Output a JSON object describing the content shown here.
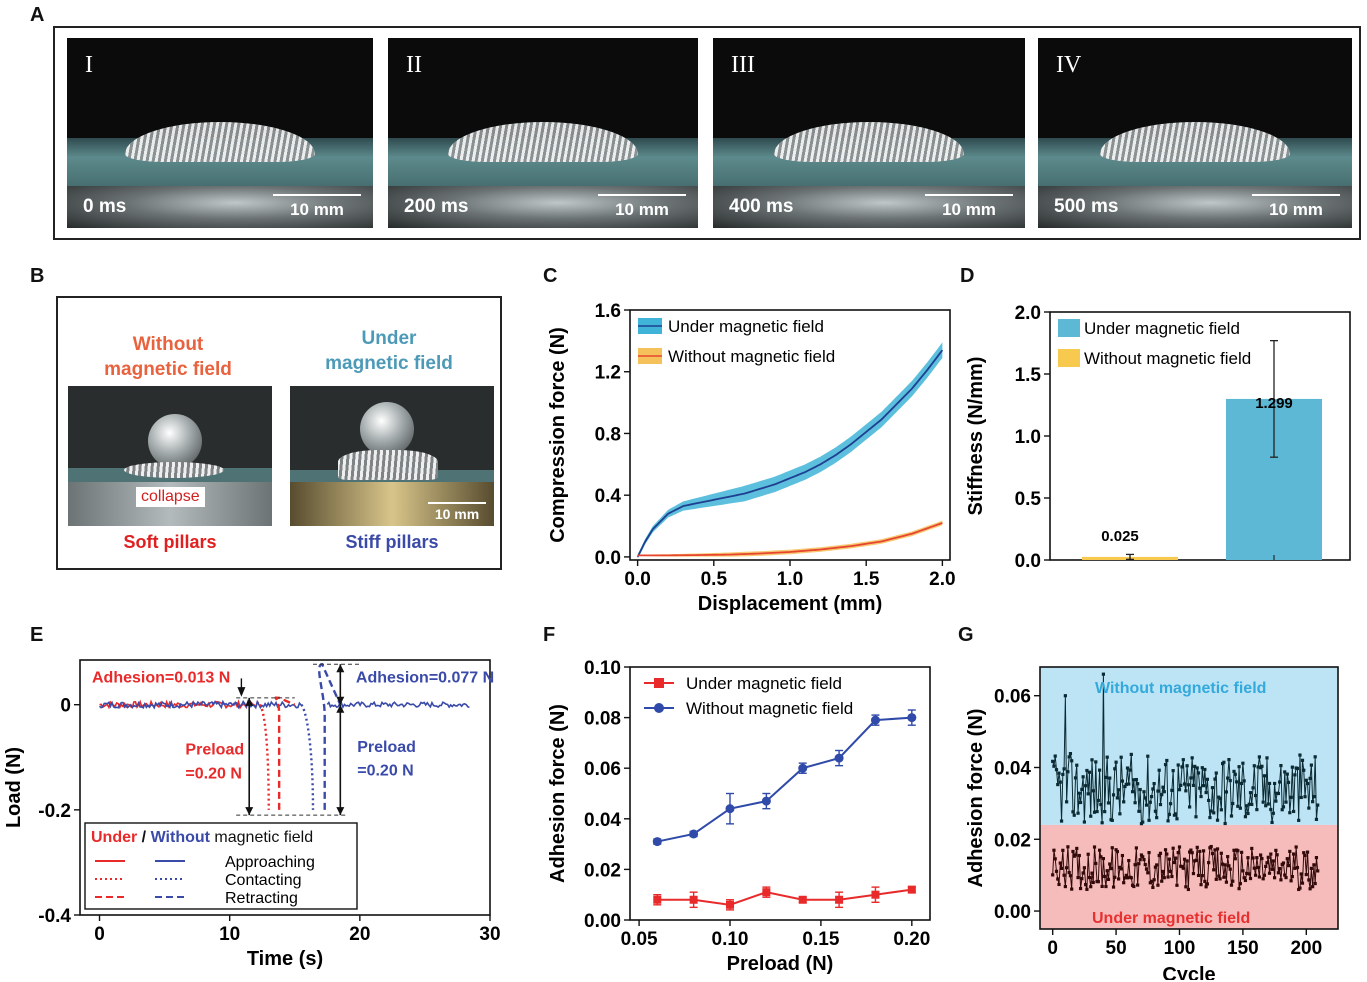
{
  "panel_letters": {
    "a": "A",
    "b": "B",
    "c": "C",
    "d": "D",
    "e": "E",
    "f": "F",
    "g": "G"
  },
  "panel_a": {
    "frames": [
      {
        "roman": "I",
        "time": "0 ms",
        "scale": "10 mm"
      },
      {
        "roman": "II",
        "time": "200 ms",
        "scale": "10 mm"
      },
      {
        "roman": "III",
        "time": "400 ms",
        "scale": "10 mm"
      },
      {
        "roman": "IV",
        "time": "500 ms",
        "scale": "10 mm"
      }
    ]
  },
  "panel_b": {
    "left_title_1": "Without",
    "left_title_2": "magnetic  field",
    "right_title_1": "Under",
    "right_title_2": "magnetic  field",
    "collapse": "collapse",
    "scale": "10 mm",
    "left_caption": "Soft pillars",
    "right_caption": "Stiff pillars",
    "colors": {
      "left_title": "#e8623e",
      "right_title": "#4d9ab8",
      "left_caption": "#e02020",
      "right_caption": "#3a4aa8"
    }
  },
  "chart_data": [
    {
      "type": "line",
      "panel": "C",
      "xlabel": "Displacement  (mm)",
      "ylabel": "Compression  force  (N)",
      "xlim": [
        -0.05,
        2.05
      ],
      "ylim": [
        -0.02,
        1.6
      ],
      "xticks": [
        "0.0",
        "0.5",
        "1.0",
        "1.5",
        "2.0"
      ],
      "yticks": [
        "0.0",
        "0.4",
        "0.8",
        "1.2",
        "1.6"
      ],
      "xtick_values": [
        0,
        0.5,
        1,
        1.5,
        2
      ],
      "ytick_values": [
        0,
        0.4,
        0.8,
        1.2,
        1.6
      ],
      "legend": "top-left",
      "series": [
        {
          "name": "Under magnetic field",
          "color": "#1f3f8f",
          "band_color": "#3fb4d8",
          "x": [
            0,
            0.05,
            0.1,
            0.2,
            0.3,
            0.4,
            0.5,
            0.6,
            0.7,
            0.8,
            0.9,
            1.0,
            1.1,
            1.2,
            1.3,
            1.4,
            1.5,
            1.6,
            1.7,
            1.8,
            1.9,
            2.0
          ],
          "y": [
            0,
            0.1,
            0.18,
            0.28,
            0.33,
            0.35,
            0.37,
            0.39,
            0.41,
            0.44,
            0.47,
            0.51,
            0.55,
            0.6,
            0.66,
            0.73,
            0.81,
            0.89,
            0.99,
            1.09,
            1.21,
            1.34
          ],
          "band": 0.05
        },
        {
          "name": "Without magnetic field",
          "color": "#e8452f",
          "band_color": "#f5c15a",
          "x": [
            0,
            0.2,
            0.4,
            0.6,
            0.8,
            1.0,
            1.2,
            1.4,
            1.6,
            1.8,
            2.0
          ],
          "y": [
            0.01,
            0.01,
            0.012,
            0.015,
            0.022,
            0.032,
            0.048,
            0.07,
            0.1,
            0.15,
            0.22
          ],
          "band": 0.015
        }
      ]
    },
    {
      "type": "bar",
      "panel": "D",
      "ylabel": "Stiffness  (N/mm)",
      "ylim": [
        0,
        2.0
      ],
      "yticks": [
        "0.0",
        "0.5",
        "1.0",
        "1.5",
        "2.0"
      ],
      "ytick_values": [
        0,
        0.5,
        1,
        1.5,
        2
      ],
      "legend": "top-left",
      "series": [
        {
          "name": "Under magnetic field",
          "color": "#5cb8d4",
          "value": 1.299,
          "err": 0.47,
          "label": "1.299"
        },
        {
          "name": "Without magnetic field",
          "color": "#f7c94e",
          "value": 0.025,
          "err": 0.02,
          "label": "0.025"
        }
      ]
    },
    {
      "type": "line",
      "panel": "E",
      "xlabel": "Time  (s)",
      "ylabel": "Load  (N)",
      "xlim": [
        -1.5,
        30
      ],
      "ylim": [
        -0.4,
        0.085
      ],
      "xticks": [
        "0",
        "10",
        "20",
        "30"
      ],
      "yticks": [
        "0",
        "-0.2",
        "-0.4"
      ],
      "xtick_values": [
        0,
        10,
        20,
        30
      ],
      "ytick_values": [
        0,
        -0.2,
        -0.4
      ],
      "legend_title_under": "Under",
      "legend_title_sep": " / ",
      "legend_title_without": "Without",
      "legend_title_rest": " magnetic field",
      "legend_rows": [
        "Approaching",
        "Contacting",
        "Retracting"
      ],
      "annotations": {
        "adh_under": "Adhesion=0.013 N",
        "adh_without": "Adhesion=0.077 N",
        "pre_under_1": "Preload",
        "pre_under_2": "=0.20 N",
        "pre_without_1": "Preload",
        "pre_without_2": "=0.20 N"
      },
      "series": [
        {
          "name": "Under",
          "color": "#e82a2a",
          "approach_end": 12.3,
          "contact_min": -0.2,
          "contact_x": [
            12.3,
            13.0
          ],
          "retract_x": [
            13.2,
            13.8
          ],
          "adhesion": 0.013
        },
        {
          "name": "Without",
          "color": "#3a4aa8",
          "approach_end": 15.5,
          "contact_min": -0.2,
          "contact_x": [
            15.5,
            16.4
          ],
          "retract_x": [
            16.5,
            17.3
          ],
          "adhesion": 0.077
        }
      ]
    },
    {
      "type": "line",
      "panel": "F",
      "xlabel": "Preload  (N)",
      "ylabel": "Adhesion  force  (N)",
      "xlim": [
        0.045,
        0.21
      ],
      "ylim": [
        0,
        0.1
      ],
      "xticks": [
        "0.05",
        "0.10",
        "0.15",
        "0.20"
      ],
      "yticks": [
        "0.00",
        "0.02",
        "0.04",
        "0.06",
        "0.08",
        "0.10"
      ],
      "xtick_values": [
        0.05,
        0.1,
        0.15,
        0.2
      ],
      "ytick_values": [
        0,
        0.02,
        0.04,
        0.06,
        0.08,
        0.1
      ],
      "legend": "top-left",
      "x": [
        0.06,
        0.08,
        0.1,
        0.12,
        0.14,
        0.16,
        0.18,
        0.2
      ],
      "series": [
        {
          "name": "Under magnetic field",
          "color": "#e82a2a",
          "marker": "square",
          "values": [
            0.008,
            0.008,
            0.006,
            0.011,
            0.008,
            0.008,
            0.01,
            0.012
          ],
          "err": [
            0.002,
            0.003,
            0.002,
            0.002,
            0.001,
            0.003,
            0.003,
            0.001
          ]
        },
        {
          "name": "Without magnetic field",
          "color": "#2f4aa8",
          "marker": "circle",
          "values": [
            0.031,
            0.034,
            0.044,
            0.047,
            0.06,
            0.064,
            0.079,
            0.08
          ],
          "err": [
            0.001,
            0.001,
            0.006,
            0.003,
            0.002,
            0.003,
            0.002,
            0.003
          ]
        }
      ]
    },
    {
      "type": "line",
      "panel": "G",
      "xlabel": "Cycle",
      "ylabel": "Adhesion  force  (N)",
      "xlim": [
        -10,
        225
      ],
      "ylim": [
        -0.005,
        0.068
      ],
      "xticks": [
        "0",
        "50",
        "100",
        "150",
        "200"
      ],
      "yticks": [
        "0.00",
        "0.02",
        "0.04",
        "0.06"
      ],
      "xtick_values": [
        0,
        50,
        100,
        150,
        200
      ],
      "ytick_values": [
        0,
        0.02,
        0.04,
        0.06
      ],
      "region_top_label": "Without magnetic field",
      "region_bottom_label": "Under magnetic field",
      "region_split": 0.024,
      "region_colors": {
        "top": "#bde4f4",
        "bottom": "#f6bcbc",
        "top_text": "#33a9dc",
        "bottom_text": "#e83030"
      },
      "series": [
        {
          "name": "Without magnetic field",
          "color": "#0b2a33",
          "n": 210,
          "mean": 0.034,
          "spread": 0.01
        },
        {
          "name": "Under magnetic field",
          "color": "#330a0a",
          "n": 210,
          "mean": 0.012,
          "spread": 0.006
        }
      ]
    }
  ]
}
